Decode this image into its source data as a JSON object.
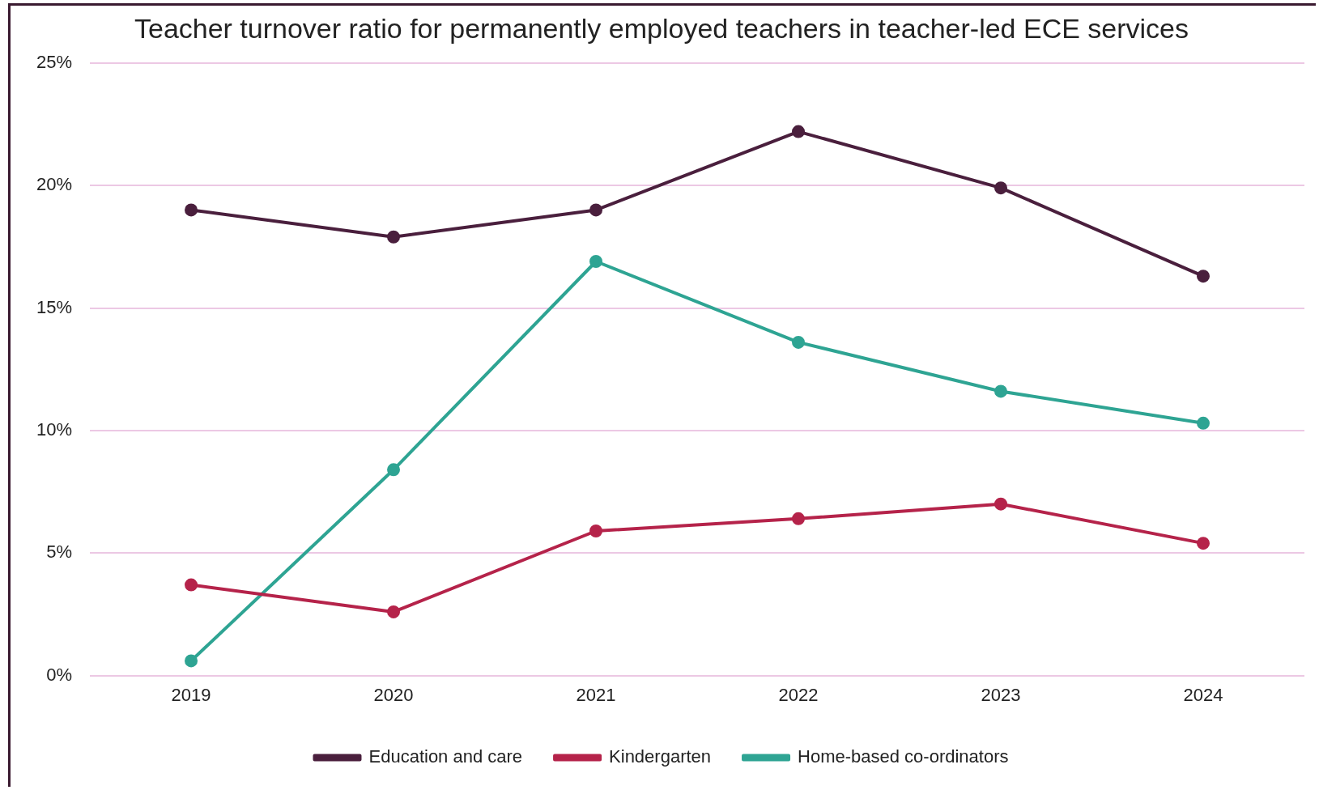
{
  "chart_data": {
    "type": "line",
    "title": "Teacher turnover ratio for permanently employed teachers in teacher-led ECE services",
    "categories": [
      "2019",
      "2020",
      "2021",
      "2022",
      "2023",
      "2024"
    ],
    "series": [
      {
        "name": "Education and care",
        "color": "#4a1f3d",
        "values": [
          19.0,
          17.9,
          19.0,
          22.2,
          19.9,
          16.3
        ]
      },
      {
        "name": "Kindergarten",
        "color": "#b5234a",
        "values": [
          3.7,
          2.6,
          5.9,
          6.4,
          7.0,
          5.4
        ]
      },
      {
        "name": "Home-based co-ordinators",
        "color": "#2ea493",
        "values": [
          0.6,
          8.4,
          16.9,
          13.6,
          11.6,
          10.3
        ]
      }
    ],
    "ylim": [
      0,
      25
    ],
    "yticks": [
      {
        "value": 0,
        "label": "0%"
      },
      {
        "value": 5,
        "label": "5%"
      },
      {
        "value": 10,
        "label": "10%"
      },
      {
        "value": 15,
        "label": "15%"
      },
      {
        "value": 20,
        "label": "20%"
      },
      {
        "value": 25,
        "label": "25%"
      }
    ],
    "grid": "y",
    "legend": "bottom",
    "marker": "circle",
    "line_style": "solid"
  }
}
